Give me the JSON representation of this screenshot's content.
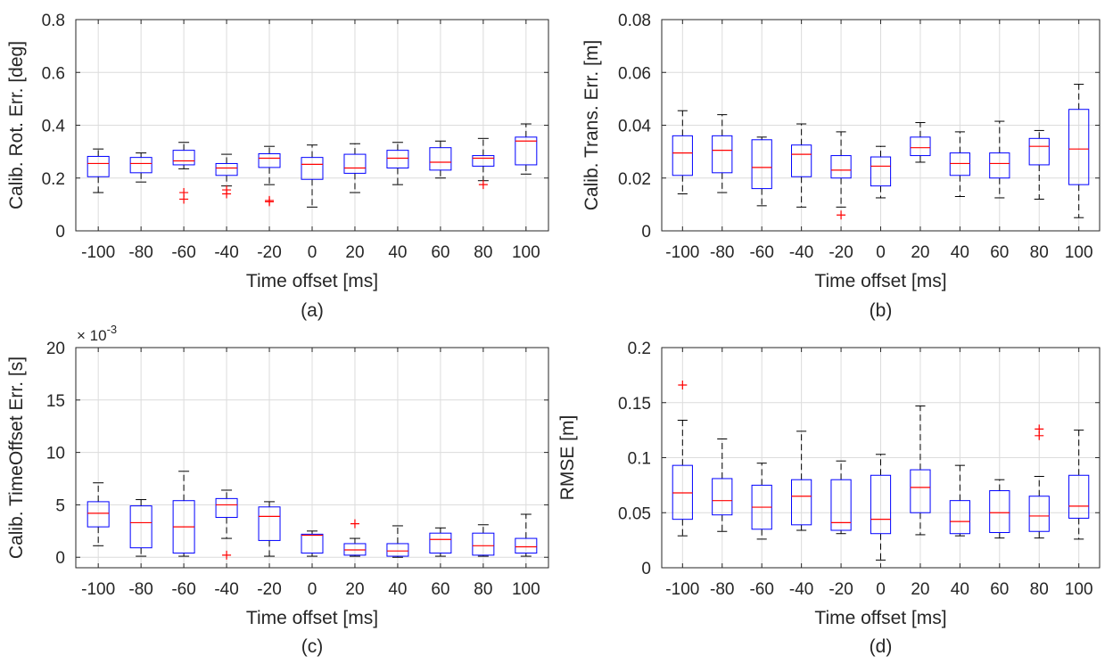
{
  "chart_data": [
    {
      "type": "box",
      "panel": "(a)",
      "xlabel": "Time offset [ms]",
      "ylabel": "Calib. Rot. Err. [deg]",
      "categories": [
        "-100",
        "-80",
        "-60",
        "-40",
        "-20",
        "0",
        "20",
        "40",
        "60",
        "80",
        "100"
      ],
      "ylim": [
        0,
        0.8
      ],
      "yticks": [
        0,
        0.2,
        0.4,
        0.6,
        0.8
      ],
      "ytick_labels": [
        "0",
        "0.2",
        "0.4",
        "0.6",
        "0.8"
      ],
      "exponent_label": "",
      "boxes": [
        {
          "min": 0.145,
          "q1": 0.205,
          "median": 0.255,
          "q3": 0.282,
          "max": 0.31,
          "outliers": []
        },
        {
          "min": 0.185,
          "q1": 0.22,
          "median": 0.255,
          "q3": 0.278,
          "max": 0.295,
          "outliers": []
        },
        {
          "min": 0.235,
          "q1": 0.25,
          "median": 0.265,
          "q3": 0.305,
          "max": 0.335,
          "outliers": [
            0.145,
            0.12
          ]
        },
        {
          "min": 0.17,
          "q1": 0.21,
          "median": 0.238,
          "q3": 0.255,
          "max": 0.29,
          "outliers": [
            0.155,
            0.14
          ]
        },
        {
          "min": 0.175,
          "q1": 0.24,
          "median": 0.275,
          "q3": 0.292,
          "max": 0.32,
          "outliers": [
            0.115,
            0.11
          ]
        },
        {
          "min": 0.09,
          "q1": 0.195,
          "median": 0.252,
          "q3": 0.278,
          "max": 0.325,
          "outliers": []
        },
        {
          "min": 0.145,
          "q1": 0.218,
          "median": 0.238,
          "q3": 0.29,
          "max": 0.33,
          "outliers": []
        },
        {
          "min": 0.175,
          "q1": 0.238,
          "median": 0.275,
          "q3": 0.305,
          "max": 0.335,
          "outliers": []
        },
        {
          "min": 0.2,
          "q1": 0.23,
          "median": 0.26,
          "q3": 0.315,
          "max": 0.34,
          "outliers": []
        },
        {
          "min": 0.19,
          "q1": 0.245,
          "median": 0.275,
          "q3": 0.285,
          "max": 0.35,
          "outliers": [
            0.175
          ]
        },
        {
          "min": 0.215,
          "q1": 0.25,
          "median": 0.34,
          "q3": 0.355,
          "max": 0.405,
          "outliers": []
        }
      ]
    },
    {
      "type": "box",
      "panel": "(b)",
      "xlabel": "Time offset [ms]",
      "ylabel": "Calib. Trans. Err. [m]",
      "categories": [
        "-100",
        "-80",
        "-60",
        "-40",
        "-20",
        "0",
        "20",
        "40",
        "60",
        "80",
        "100"
      ],
      "ylim": [
        0,
        0.08
      ],
      "yticks": [
        0,
        0.02,
        0.04,
        0.06,
        0.08
      ],
      "ytick_labels": [
        "0",
        "0.02",
        "0.04",
        "0.06",
        "0.08"
      ],
      "exponent_label": "",
      "boxes": [
        {
          "min": 0.014,
          "q1": 0.021,
          "median": 0.0295,
          "q3": 0.036,
          "max": 0.0455,
          "outliers": []
        },
        {
          "min": 0.0145,
          "q1": 0.022,
          "median": 0.0305,
          "q3": 0.036,
          "max": 0.044,
          "outliers": []
        },
        {
          "min": 0.0095,
          "q1": 0.016,
          "median": 0.024,
          "q3": 0.0345,
          "max": 0.0355,
          "outliers": []
        },
        {
          "min": 0.009,
          "q1": 0.0205,
          "median": 0.029,
          "q3": 0.0325,
          "max": 0.0405,
          "outliers": []
        },
        {
          "min": 0.009,
          "q1": 0.02,
          "median": 0.023,
          "q3": 0.0285,
          "max": 0.0375,
          "outliers": [
            0.006
          ]
        },
        {
          "min": 0.0125,
          "q1": 0.017,
          "median": 0.0245,
          "q3": 0.028,
          "max": 0.032,
          "outliers": []
        },
        {
          "min": 0.026,
          "q1": 0.0285,
          "median": 0.0315,
          "q3": 0.0355,
          "max": 0.041,
          "outliers": []
        },
        {
          "min": 0.013,
          "q1": 0.021,
          "median": 0.0255,
          "q3": 0.0295,
          "max": 0.0375,
          "outliers": []
        },
        {
          "min": 0.0125,
          "q1": 0.02,
          "median": 0.0255,
          "q3": 0.0295,
          "max": 0.0415,
          "outliers": []
        },
        {
          "min": 0.012,
          "q1": 0.025,
          "median": 0.032,
          "q3": 0.035,
          "max": 0.038,
          "outliers": []
        },
        {
          "min": 0.005,
          "q1": 0.0175,
          "median": 0.031,
          "q3": 0.046,
          "max": 0.0555,
          "outliers": []
        }
      ]
    },
    {
      "type": "box",
      "panel": "(c)",
      "xlabel": "Time offset [ms]",
      "ylabel": "Calib. TimeOffset Err. [s]",
      "categories": [
        "-100",
        "-80",
        "-60",
        "-40",
        "-20",
        "0",
        "20",
        "40",
        "60",
        "80",
        "100"
      ],
      "ylim": [
        -1,
        20
      ],
      "yticks": [
        0,
        5,
        10,
        15,
        20
      ],
      "ytick_labels": [
        "0",
        "5",
        "10",
        "15",
        "20"
      ],
      "exponent_label": "× 10",
      "exponent_power": "-3",
      "boxes": [
        {
          "min": 1.1,
          "q1": 2.9,
          "median": 4.2,
          "q3": 5.3,
          "max": 7.1,
          "outliers": []
        },
        {
          "min": 0.1,
          "q1": 0.9,
          "median": 3.3,
          "q3": 4.9,
          "max": 5.5,
          "outliers": []
        },
        {
          "min": 0.1,
          "q1": 0.4,
          "median": 2.9,
          "q3": 5.4,
          "max": 8.2,
          "outliers": []
        },
        {
          "min": 1.8,
          "q1": 3.8,
          "median": 5.0,
          "q3": 5.6,
          "max": 6.4,
          "outliers": [
            0.2
          ]
        },
        {
          "min": 0.1,
          "q1": 1.6,
          "median": 3.9,
          "q3": 4.8,
          "max": 5.3,
          "outliers": []
        },
        {
          "min": 0.1,
          "q1": 0.4,
          "median": 2.1,
          "q3": 2.2,
          "max": 2.5,
          "outliers": []
        },
        {
          "min": 0.1,
          "q1": 0.2,
          "median": 0.7,
          "q3": 1.3,
          "max": 1.8,
          "outliers": [
            3.2
          ]
        },
        {
          "min": 0.0,
          "q1": 0.1,
          "median": 0.6,
          "q3": 1.3,
          "max": 3.0,
          "outliers": []
        },
        {
          "min": 0.1,
          "q1": 0.4,
          "median": 1.7,
          "q3": 2.3,
          "max": 2.8,
          "outliers": []
        },
        {
          "min": 0.1,
          "q1": 0.2,
          "median": 1.1,
          "q3": 2.3,
          "max": 3.1,
          "outliers": []
        },
        {
          "min": 0.1,
          "q1": 0.4,
          "median": 1.0,
          "q3": 1.8,
          "max": 4.1,
          "outliers": []
        }
      ]
    },
    {
      "type": "box",
      "panel": "(d)",
      "xlabel": "Time offset [ms]",
      "ylabel": "RMSE [m]",
      "categories": [
        "-100",
        "-80",
        "-60",
        "-40",
        "-20",
        "0",
        "20",
        "40",
        "60",
        "80",
        "100"
      ],
      "ylim": [
        0,
        0.2
      ],
      "yticks": [
        0,
        0.05,
        0.1,
        0.15,
        0.2
      ],
      "ytick_labels": [
        "0",
        "0.05",
        "0.1",
        "0.15",
        "0.2"
      ],
      "exponent_label": "",
      "boxes": [
        {
          "min": 0.029,
          "q1": 0.044,
          "median": 0.068,
          "q3": 0.093,
          "max": 0.134,
          "outliers": [
            0.166
          ]
        },
        {
          "min": 0.033,
          "q1": 0.048,
          "median": 0.061,
          "q3": 0.081,
          "max": 0.117,
          "outliers": []
        },
        {
          "min": 0.026,
          "q1": 0.035,
          "median": 0.055,
          "q3": 0.075,
          "max": 0.095,
          "outliers": []
        },
        {
          "min": 0.034,
          "q1": 0.039,
          "median": 0.065,
          "q3": 0.08,
          "max": 0.124,
          "outliers": []
        },
        {
          "min": 0.031,
          "q1": 0.034,
          "median": 0.041,
          "q3": 0.08,
          "max": 0.097,
          "outliers": []
        },
        {
          "min": 0.007,
          "q1": 0.031,
          "median": 0.044,
          "q3": 0.084,
          "max": 0.103,
          "outliers": []
        },
        {
          "min": 0.03,
          "q1": 0.05,
          "median": 0.073,
          "q3": 0.089,
          "max": 0.147,
          "outliers": []
        },
        {
          "min": 0.029,
          "q1": 0.031,
          "median": 0.042,
          "q3": 0.061,
          "max": 0.093,
          "outliers": []
        },
        {
          "min": 0.027,
          "q1": 0.032,
          "median": 0.05,
          "q3": 0.07,
          "max": 0.08,
          "outliers": []
        },
        {
          "min": 0.027,
          "q1": 0.033,
          "median": 0.047,
          "q3": 0.065,
          "max": 0.083,
          "outliers": [
            0.126,
            0.12
          ]
        },
        {
          "min": 0.026,
          "q1": 0.045,
          "median": 0.056,
          "q3": 0.084,
          "max": 0.125,
          "outliers": []
        }
      ]
    }
  ],
  "colors": {
    "box": "#0000ff",
    "median": "#ff0000",
    "outlier": "#ff0000",
    "whisker": "#000000",
    "grid": "#dcdcdc",
    "axis": "#262626"
  }
}
